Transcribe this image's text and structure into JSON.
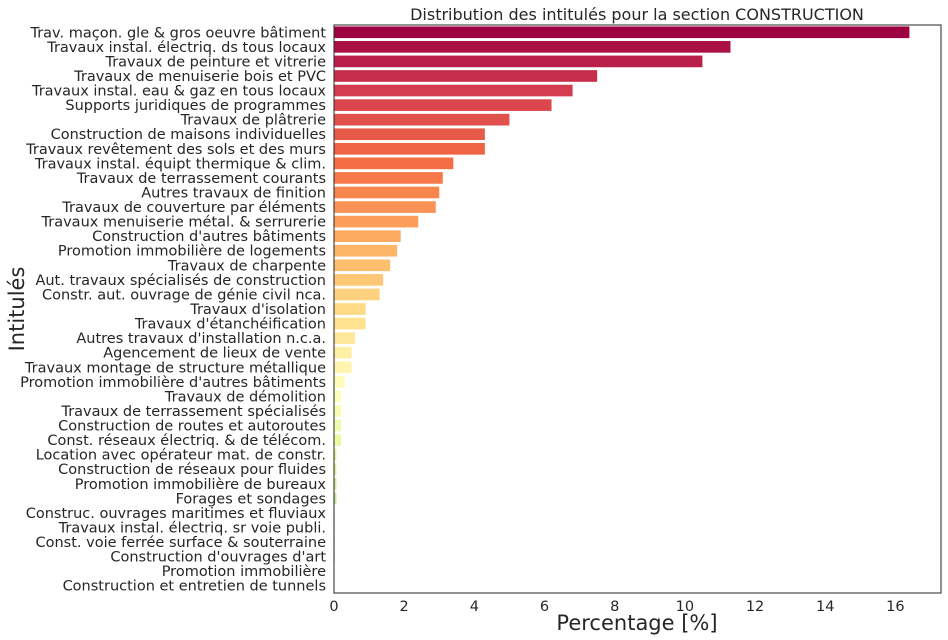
{
  "chart_data": {
    "type": "bar",
    "orientation": "horizontal",
    "title": "Distribution des intitulés pour la section CONSTRUCTION",
    "xlabel": "Percentage [%]",
    "ylabel": "Intitulés",
    "xlim": [
      0,
      17.3
    ],
    "xticks": [
      0,
      2,
      4,
      6,
      8,
      10,
      12,
      14,
      16
    ],
    "grid": false,
    "palette": "Spectral (red → orange → yellow → green)",
    "categories": [
      "Trav. maçon. gle & gros oeuvre bâtiment",
      "Travaux instal. électriq. ds tous locaux",
      "Travaux de peinture et vitrerie",
      "Travaux de menuiserie bois et PVC",
      "Travaux instal. eau & gaz en tous locaux",
      "Supports juridiques de programmes",
      "Travaux de plâtrerie",
      "Construction de maisons individuelles",
      "Travaux revêtement des sols et des murs",
      "Travaux instal. équipt thermique & clim.",
      "Travaux de terrassement courants",
      "Autres travaux de finition",
      "Travaux de couverture par éléments",
      "Travaux menuiserie métal. & serrurerie",
      "Construction d'autres bâtiments",
      "Promotion immobilière de logements",
      "Travaux de charpente",
      "Aut. travaux spécialisés de construction",
      "Constr. aut. ouvrage de génie civil nca.",
      "Travaux d'isolation",
      "Travaux d'étanchéification",
      "Autres travaux d'installation n.c.a.",
      "Agencement de lieux de vente",
      "Travaux montage de structure métallique",
      "Promotion immobilière d'autres bâtiments",
      "Travaux de démolition",
      "Travaux de terrassement spécialisés",
      "Construction de routes et autoroutes",
      "Const. réseaux électriq. & de télécom.",
      "Location avec opérateur mat. de constr.",
      "Construction de réseaux pour fluides",
      "Promotion immobilière de bureaux",
      "Forages et sondages",
      "Construc. ouvrages maritimes et fluviaux",
      "Travaux instal. électriq. sr voie publi.",
      "Const. voie ferrée surface & souterraine",
      "Construction d'ouvrages d'art",
      "Promotion immobilière",
      "Construction et entretien de tunnels"
    ],
    "values": [
      16.4,
      11.3,
      10.5,
      7.5,
      6.8,
      6.2,
      5.0,
      4.3,
      4.3,
      3.4,
      3.1,
      3.0,
      2.9,
      2.4,
      1.9,
      1.8,
      1.6,
      1.4,
      1.3,
      0.9,
      0.9,
      0.6,
      0.5,
      0.5,
      0.3,
      0.2,
      0.2,
      0.2,
      0.2,
      0.07,
      0.07,
      0.07,
      0.07,
      0.02,
      0.02,
      0.02,
      0.02,
      0.01,
      0.01
    ]
  }
}
